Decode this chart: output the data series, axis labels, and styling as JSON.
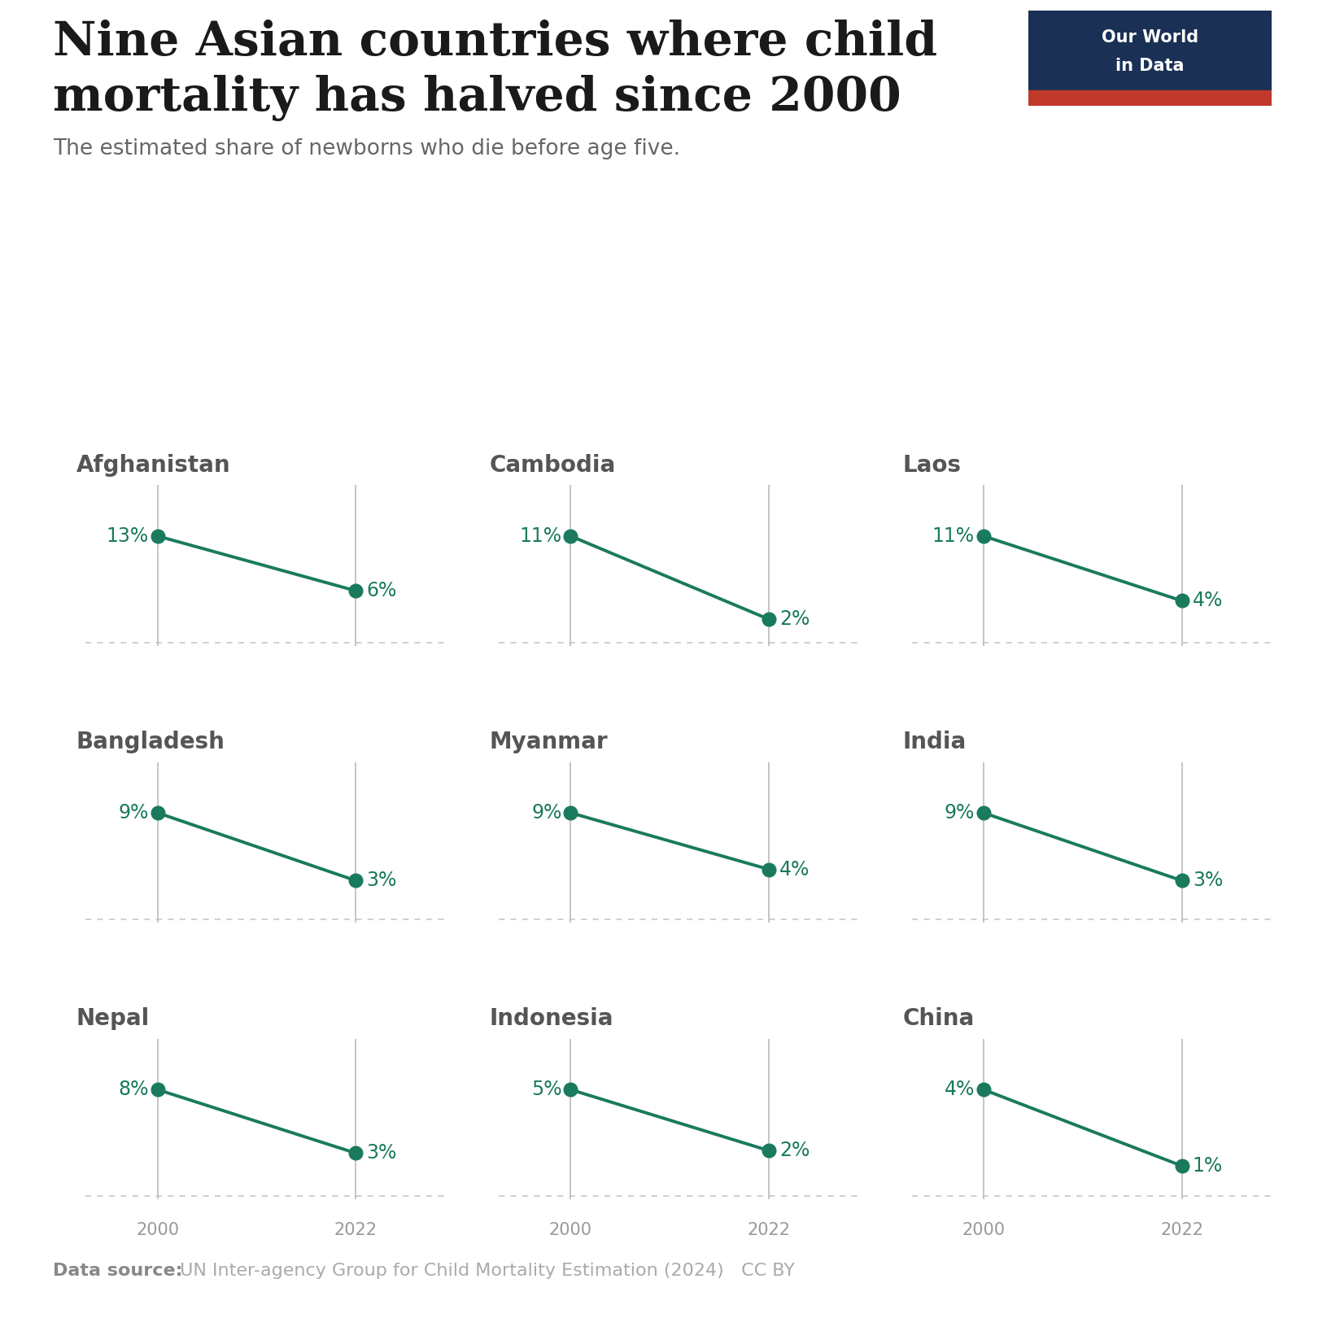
{
  "title_line1": "Nine Asian countries where child",
  "title_line2": "mortality has halved since 2000",
  "subtitle": "The estimated share of newborns who die before age five.",
  "datasource_bold": "Data source:",
  "datasource_regular": " UN Inter-agency Group for Child Mortality Estimation (2024)",
  "cc_by": "   CC BY",
  "countries": [
    {
      "name": "Afghanistan",
      "val2000": 13,
      "val2022": 6
    },
    {
      "name": "Cambodia",
      "val2000": 11,
      "val2022": 2
    },
    {
      "name": "Laos",
      "val2000": 11,
      "val2022": 4
    },
    {
      "name": "Bangladesh",
      "val2000": 9,
      "val2022": 3
    },
    {
      "name": "Myanmar",
      "val2000": 9,
      "val2022": 4
    },
    {
      "name": "India",
      "val2000": 9,
      "val2022": 3
    },
    {
      "name": "Nepal",
      "val2000": 8,
      "val2022": 3
    },
    {
      "name": "Indonesia",
      "val2000": 5,
      "val2022": 2
    },
    {
      "name": "China",
      "val2000": 4,
      "val2022": 1
    }
  ],
  "line_color": "#1a7a5e",
  "dot_color": "#1a7a5e",
  "background_color": "#ffffff",
  "title_color": "#1a1a1a",
  "subtitle_color": "#666666",
  "country_label_color": "#555555",
  "value_label_color": "#1a7a5e",
  "axis_label_color": "#999999",
  "datasource_bold_color": "#888888",
  "datasource_regular_color": "#aaaaaa",
  "dashed_line_color": "#cccccc",
  "vertical_line_color": "#bbbbbb",
  "owid_bg": "#1a3055",
  "owid_red": "#c0392b",
  "owid_text": "#ffffff"
}
